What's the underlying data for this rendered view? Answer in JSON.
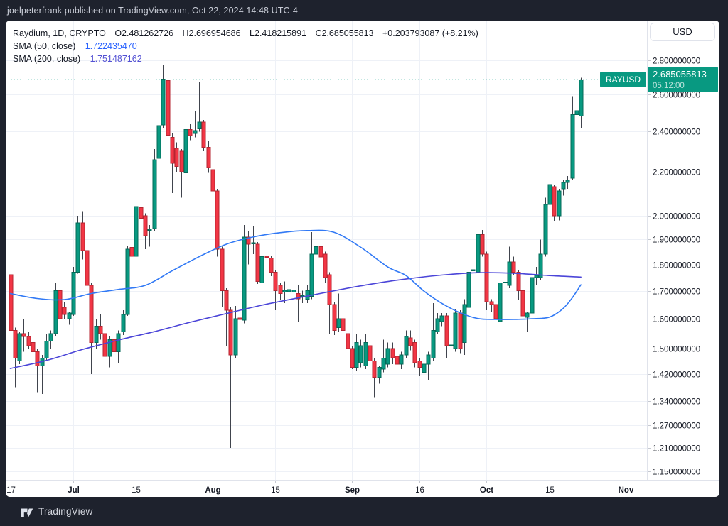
{
  "attribution_bar": {
    "text": "joelpeterfrank published on TradingView.com, Oct 22, 2024 14:48 UTC-4"
  },
  "toolbar": {
    "currency_label": "USD"
  },
  "legend": {
    "line1": {
      "symbol": "Raydium, 1D, CRYPTO",
      "open": "O2.481262726",
      "high": "H2.696954686",
      "low": "L2.418215891",
      "close": "C2.685055813",
      "change": "+0.203793087 (+8.21%)"
    },
    "sma50": {
      "label": "SMA (50, close)",
      "value": "1.722435470"
    },
    "sma200": {
      "label": "SMA (200, close)",
      "value": "1.751487162"
    }
  },
  "price_label": {
    "symbol": "RAYUSD",
    "price": "2.685055813",
    "countdown": "05:12:00"
  },
  "footer": {
    "brand": "TradingView"
  },
  "colors": {
    "up": "#089981",
    "up_border": "#056a58",
    "down": "#f23645",
    "down_border": "#b52531",
    "wick": "#40444d",
    "sma50": "#3179f5",
    "sma200": "#4b45d8",
    "accent": "#089981",
    "grid": "#eef1f7",
    "axis_line": "#e0e3eb",
    "axis_text": "#131722",
    "frame_background": "#1e222d",
    "chart_background": "#ffffff"
  },
  "chart_data": {
    "type": "candlestick",
    "symbol": "RAYUSD",
    "interval": "1D",
    "exchange": "CRYPTO",
    "scale": "log",
    "current_price": 2.685055813,
    "y_axis_ticks": [
      {
        "label": "2.800000000",
        "value": 2.8
      },
      {
        "label": "2.600000000",
        "value": 2.6
      },
      {
        "label": "2.400000000",
        "value": 2.4
      },
      {
        "label": "2.200000000",
        "value": 2.2
      },
      {
        "label": "2.000000000",
        "value": 2.0
      },
      {
        "label": "1.900000000",
        "value": 1.9
      },
      {
        "label": "1.800000000",
        "value": 1.8
      },
      {
        "label": "1.700000000",
        "value": 1.7
      },
      {
        "label": "1.600000000",
        "value": 1.6
      },
      {
        "label": "1.500000000",
        "value": 1.5
      },
      {
        "label": "1.420000000",
        "value": 1.42
      },
      {
        "label": "1.340000000",
        "value": 1.34
      },
      {
        "label": "1.270000000",
        "value": 1.27
      },
      {
        "label": "1.210000000",
        "value": 1.21
      },
      {
        "label": "1.150000000",
        "value": 1.15
      }
    ],
    "x_axis_labels": [
      {
        "label": "17",
        "index": 0,
        "bold": false
      },
      {
        "label": "Jul",
        "index": 14,
        "bold": true
      },
      {
        "label": "15",
        "index": 28,
        "bold": false
      },
      {
        "label": "Aug",
        "index": 45,
        "bold": true
      },
      {
        "label": "15",
        "index": 59,
        "bold": false
      },
      {
        "label": "Sep",
        "index": 76,
        "bold": true
      },
      {
        "label": "16",
        "index": 91,
        "bold": false
      },
      {
        "label": "Oct",
        "index": 106,
        "bold": true
      },
      {
        "label": "15",
        "index": 120,
        "bold": false
      },
      {
        "label": "Nov",
        "index": 137,
        "bold": true
      }
    ],
    "candles": [
      [
        1.76,
        1.785,
        1.545,
        1.56
      ],
      [
        1.56,
        1.57,
        1.38,
        1.47
      ],
      [
        1.46,
        1.555,
        1.45,
        1.55
      ],
      [
        1.55,
        1.6,
        1.49,
        1.54
      ],
      [
        1.54,
        1.555,
        1.5,
        1.51
      ],
      [
        1.52,
        1.53,
        1.455,
        1.49
      ],
      [
        1.49,
        1.5,
        1.365,
        1.445
      ],
      [
        1.445,
        1.48,
        1.36,
        1.47
      ],
      [
        1.47,
        1.55,
        1.46,
        1.525
      ],
      [
        1.525,
        1.56,
        1.5,
        1.55
      ],
      [
        1.55,
        1.73,
        1.54,
        1.7
      ],
      [
        1.7,
        1.71,
        1.585,
        1.6
      ],
      [
        1.64,
        1.66,
        1.6,
        1.615
      ],
      [
        1.6,
        1.625,
        1.58,
        1.62
      ],
      [
        1.615,
        1.79,
        1.61,
        1.77
      ],
      [
        1.77,
        2.0,
        1.765,
        1.97
      ],
      [
        1.97,
        2.02,
        1.82,
        1.855
      ],
      [
        1.855,
        1.87,
        1.69,
        1.72
      ],
      [
        1.72,
        1.73,
        1.42,
        1.52
      ],
      [
        1.52,
        1.6,
        1.5,
        1.575
      ],
      [
        1.575,
        1.615,
        1.53,
        1.55
      ],
      [
        1.55,
        1.565,
        1.45,
        1.475
      ],
      [
        1.475,
        1.54,
        1.44,
        1.53
      ],
      [
        1.53,
        1.555,
        1.46,
        1.49
      ],
      [
        1.49,
        1.56,
        1.455,
        1.55
      ],
      [
        1.555,
        1.63,
        1.545,
        1.615
      ],
      [
        1.615,
        1.875,
        1.61,
        1.86
      ],
      [
        1.868,
        1.882,
        1.815,
        1.832
      ],
      [
        1.832,
        2.06,
        1.825,
        2.04
      ],
      [
        2.035,
        2.05,
        1.91,
        1.99
      ],
      [
        2.0,
        2.01,
        1.86,
        1.915
      ],
      [
        1.938,
        1.96,
        1.87,
        1.942
      ],
      [
        1.945,
        2.31,
        1.935,
        2.258
      ],
      [
        2.265,
        2.59,
        2.25,
        2.43
      ],
      [
        2.435,
        2.77,
        2.42,
        2.688
      ],
      [
        2.68,
        2.705,
        2.345,
        2.38
      ],
      [
        2.37,
        2.39,
        2.1,
        2.24
      ],
      [
        2.315,
        2.345,
        2.2,
        2.225
      ],
      [
        2.3,
        2.31,
        2.08,
        2.2
      ],
      [
        2.195,
        2.48,
        2.18,
        2.41
      ],
      [
        2.41,
        2.44,
        2.355,
        2.38
      ],
      [
        2.39,
        2.51,
        2.37,
        2.405
      ],
      [
        2.415,
        2.67,
        2.4,
        2.45
      ],
      [
        2.45,
        2.46,
        2.3,
        2.32
      ],
      [
        2.32,
        2.35,
        2.195,
        2.22
      ],
      [
        2.21,
        2.23,
        1.99,
        2.11
      ],
      [
        2.11,
        2.12,
        1.83,
        1.86
      ],
      [
        1.86,
        1.87,
        1.64,
        1.7
      ],
      [
        1.7,
        1.71,
        1.51,
        1.63
      ],
      [
        1.63,
        1.64,
        1.21,
        1.48
      ],
      [
        1.48,
        1.645,
        1.47,
        1.6
      ],
      [
        1.603,
        1.615,
        1.54,
        1.598
      ],
      [
        1.595,
        1.96,
        1.585,
        1.91
      ],
      [
        1.91,
        1.935,
        1.8,
        1.88
      ],
      [
        1.882,
        1.955,
        1.84,
        1.886
      ],
      [
        1.88,
        1.89,
        1.725,
        1.735
      ],
      [
        1.73,
        1.855,
        1.72,
        1.83
      ],
      [
        1.832,
        1.872,
        1.805,
        1.828
      ],
      [
        1.825,
        1.835,
        1.755,
        1.77
      ],
      [
        1.77,
        1.78,
        1.63,
        1.7
      ],
      [
        1.72,
        1.73,
        1.665,
        1.69
      ],
      [
        1.695,
        1.735,
        1.655,
        1.702
      ],
      [
        1.697,
        1.74,
        1.68,
        1.705
      ],
      [
        1.695,
        1.715,
        1.675,
        1.703
      ],
      [
        1.69,
        1.72,
        1.59,
        1.67
      ],
      [
        1.68,
        1.7,
        1.655,
        1.682
      ],
      [
        1.67,
        1.72,
        1.655,
        1.7
      ],
      [
        1.68,
        1.93,
        1.67,
        1.84
      ],
      [
        1.84,
        1.96,
        1.83,
        1.87
      ],
      [
        1.87,
        1.88,
        1.78,
        1.83
      ],
      [
        1.84,
        1.85,
        1.73,
        1.75
      ],
      [
        1.76,
        1.77,
        1.55,
        1.65
      ],
      [
        1.65,
        1.66,
        1.545,
        1.56
      ],
      [
        1.57,
        1.69,
        1.555,
        1.6
      ],
      [
        1.6,
        1.61,
        1.545,
        1.56
      ],
      [
        1.55,
        1.56,
        1.485,
        1.5
      ],
      [
        1.5,
        1.51,
        1.435,
        1.44
      ],
      [
        1.44,
        1.55,
        1.43,
        1.52
      ],
      [
        1.455,
        1.53,
        1.44,
        1.51
      ],
      [
        1.445,
        1.55,
        1.435,
        1.52
      ],
      [
        1.51,
        1.52,
        1.41,
        1.46
      ],
      [
        1.46,
        1.47,
        1.35,
        1.41
      ],
      [
        1.41,
        1.445,
        1.39,
        1.44
      ],
      [
        1.435,
        1.53,
        1.425,
        1.47
      ],
      [
        1.45,
        1.52,
        1.44,
        1.5
      ],
      [
        1.5,
        1.52,
        1.45,
        1.47
      ],
      [
        1.475,
        1.49,
        1.425,
        1.45
      ],
      [
        1.45,
        1.49,
        1.435,
        1.48
      ],
      [
        1.48,
        1.56,
        1.47,
        1.54
      ],
      [
        1.535,
        1.56,
        1.495,
        1.51
      ],
      [
        1.52,
        1.53,
        1.44,
        1.455
      ],
      [
        1.46,
        1.47,
        1.415,
        1.44
      ],
      [
        1.425,
        1.46,
        1.405,
        1.45
      ],
      [
        1.45,
        1.49,
        1.4,
        1.48
      ],
      [
        1.47,
        1.655,
        1.46,
        1.56
      ],
      [
        1.555,
        1.62,
        1.55,
        1.6
      ],
      [
        1.59,
        1.62,
        1.575,
        1.61
      ],
      [
        1.61,
        1.62,
        1.47,
        1.51
      ],
      [
        1.51,
        1.55,
        1.47,
        1.512
      ],
      [
        1.5,
        1.635,
        1.49,
        1.62
      ],
      [
        1.62,
        1.63,
        1.485,
        1.5
      ],
      [
        1.52,
        1.67,
        1.48,
        1.65
      ],
      [
        1.64,
        1.81,
        1.63,
        1.77
      ],
      [
        1.775,
        1.81,
        1.71,
        1.78
      ],
      [
        1.77,
        1.97,
        1.765,
        1.92
      ],
      [
        1.92,
        1.94,
        1.83,
        1.84
      ],
      [
        1.84,
        1.85,
        1.63,
        1.66
      ],
      [
        1.66,
        1.67,
        1.625,
        1.65
      ],
      [
        1.65,
        1.66,
        1.55,
        1.6
      ],
      [
        1.59,
        1.74,
        1.58,
        1.73
      ],
      [
        1.73,
        1.77,
        1.685,
        1.732
      ],
      [
        1.72,
        1.87,
        1.71,
        1.81
      ],
      [
        1.81,
        1.83,
        1.76,
        1.77
      ],
      [
        1.77,
        1.78,
        1.665,
        1.7
      ],
      [
        1.7,
        1.71,
        1.565,
        1.61
      ],
      [
        1.605,
        1.625,
        1.555,
        1.62
      ],
      [
        1.62,
        1.805,
        1.61,
        1.75
      ],
      [
        1.75,
        1.79,
        1.72,
        1.758
      ],
      [
        1.75,
        1.9,
        1.74,
        1.84
      ],
      [
        1.84,
        2.08,
        1.83,
        2.05
      ],
      [
        2.05,
        2.17,
        2.04,
        2.14
      ],
      [
        2.13,
        2.14,
        1.975,
        2.0
      ],
      [
        2.0,
        2.12,
        1.98,
        2.11
      ],
      [
        2.12,
        2.16,
        2.09,
        2.15
      ],
      [
        2.15,
        2.18,
        2.12,
        2.16
      ],
      [
        2.17,
        2.59,
        2.16,
        2.49
      ],
      [
        2.49,
        2.52,
        2.455,
        2.51
      ],
      [
        2.481262726,
        2.696954686,
        2.418215891,
        2.685055813
      ]
    ],
    "sma50": {
      "period": 50,
      "color": "#3179f5",
      "points": [
        [
          0,
          1.69
        ],
        [
          6,
          1.672
        ],
        [
          12,
          1.668
        ],
        [
          18,
          1.69
        ],
        [
          24,
          1.705
        ],
        [
          30,
          1.72
        ],
        [
          36,
          1.775
        ],
        [
          42,
          1.83
        ],
        [
          48,
          1.88
        ],
        [
          54,
          1.91
        ],
        [
          60,
          1.928
        ],
        [
          66,
          1.937
        ],
        [
          72,
          1.93
        ],
        [
          78,
          1.868
        ],
        [
          84,
          1.79
        ],
        [
          88,
          1.758
        ],
        [
          92,
          1.7
        ],
        [
          96,
          1.655
        ],
        [
          100,
          1.622
        ],
        [
          104,
          1.601
        ],
        [
          108,
          1.598
        ],
        [
          112,
          1.598
        ],
        [
          116,
          1.6
        ],
        [
          120,
          1.606
        ],
        [
          123,
          1.636
        ],
        [
          125,
          1.673
        ],
        [
          127,
          1.72243547
        ]
      ]
    },
    "sma200": {
      "period": 200,
      "color": "#4b45d8",
      "points": [
        [
          0,
          1.437
        ],
        [
          8,
          1.462
        ],
        [
          16,
          1.497
        ],
        [
          24,
          1.528
        ],
        [
          32,
          1.556
        ],
        [
          40,
          1.588
        ],
        [
          48,
          1.618
        ],
        [
          56,
          1.648
        ],
        [
          64,
          1.674
        ],
        [
          72,
          1.7
        ],
        [
          80,
          1.724
        ],
        [
          88,
          1.744
        ],
        [
          96,
          1.759
        ],
        [
          104,
          1.768
        ],
        [
          112,
          1.766
        ],
        [
          120,
          1.757
        ],
        [
          127,
          1.751487162
        ]
      ]
    }
  }
}
